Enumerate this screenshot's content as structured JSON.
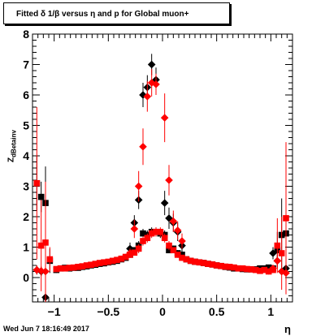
{
  "title_box": {
    "text": "Fitted δ 1/β versus η and p for Global muon+"
  },
  "timestamp": "Wed Jun  7 18:16:49 2017",
  "colors": {
    "series_black": "#000000",
    "series_red": "#ff0000",
    "axis": "#000000"
  },
  "chart_data": {
    "type": "scatter",
    "title": "Fitted δ 1/β versus η and p for Global muon+",
    "xlabel": "η",
    "ylabel": "Z_dBetainv",
    "xlim": [
      -1.2,
      1.2
    ],
    "ylim": [
      -0.8,
      8
    ],
    "x_ticks": [
      "−1",
      "−0.5",
      "0",
      "0.5",
      "1"
    ],
    "x_tick_values": [
      -1,
      -0.5,
      0,
      0.5,
      1
    ],
    "y_ticks": [
      "0",
      "1",
      "2",
      "3",
      "4",
      "5",
      "6",
      "7",
      "8"
    ],
    "y_tick_values": [
      0,
      1,
      2,
      3,
      4,
      5,
      6,
      7,
      8
    ],
    "grid": false,
    "legend": "none",
    "series": [
      {
        "marker": "square",
        "color": "black",
        "points": [
          [
            -1.16,
            3.1,
            0.9
          ],
          [
            -1.12,
            2.65,
            0.5
          ],
          [
            -1.08,
            2.45,
            1.2
          ],
          [
            -1.04,
            0.55,
            0.4
          ],
          [
            -0.98,
            0.25,
            0.1
          ],
          [
            -0.94,
            0.3,
            0.08
          ],
          [
            -0.9,
            0.32,
            0.08
          ],
          [
            -0.86,
            0.3,
            0.08
          ],
          [
            -0.82,
            0.32,
            0.08
          ],
          [
            -0.78,
            0.32,
            0.08
          ],
          [
            -0.74,
            0.35,
            0.08
          ],
          [
            -0.7,
            0.37,
            0.08
          ],
          [
            -0.66,
            0.4,
            0.08
          ],
          [
            -0.62,
            0.42,
            0.08
          ],
          [
            -0.58,
            0.45,
            0.08
          ],
          [
            -0.54,
            0.47,
            0.08
          ],
          [
            -0.5,
            0.5,
            0.08
          ],
          [
            -0.46,
            0.52,
            0.08
          ],
          [
            -0.42,
            0.55,
            0.08
          ],
          [
            -0.38,
            0.6,
            0.08
          ],
          [
            -0.34,
            0.65,
            0.1
          ],
          [
            -0.3,
            0.75,
            0.1
          ],
          [
            -0.26,
            0.9,
            0.1
          ],
          [
            -0.22,
            1.05,
            0.15
          ],
          [
            -0.18,
            1.45,
            0.15
          ],
          [
            -0.14,
            1.4,
            0.15
          ],
          [
            -0.1,
            1.5,
            0.15
          ],
          [
            -0.06,
            1.5,
            0.15
          ],
          [
            -0.02,
            1.45,
            0.15
          ],
          [
            0.02,
            1.4,
            0.15
          ],
          [
            0.06,
            0.9,
            0.1
          ],
          [
            0.1,
            0.95,
            0.1
          ],
          [
            0.14,
            0.8,
            0.1
          ],
          [
            0.18,
            0.75,
            0.1
          ],
          [
            0.22,
            0.6,
            0.08
          ],
          [
            0.26,
            0.55,
            0.08
          ],
          [
            0.3,
            0.52,
            0.08
          ],
          [
            0.34,
            0.5,
            0.08
          ],
          [
            0.38,
            0.48,
            0.08
          ],
          [
            0.42,
            0.45,
            0.08
          ],
          [
            0.46,
            0.43,
            0.08
          ],
          [
            0.5,
            0.4,
            0.08
          ],
          [
            0.54,
            0.38,
            0.08
          ],
          [
            0.58,
            0.35,
            0.08
          ],
          [
            0.62,
            0.33,
            0.08
          ],
          [
            0.66,
            0.3,
            0.08
          ],
          [
            0.7,
            0.3,
            0.08
          ],
          [
            0.74,
            0.28,
            0.08
          ],
          [
            0.78,
            0.27,
            0.08
          ],
          [
            0.82,
            0.27,
            0.08
          ],
          [
            0.86,
            0.27,
            0.08
          ],
          [
            0.9,
            0.3,
            0.08
          ],
          [
            0.94,
            0.3,
            0.08
          ],
          [
            0.98,
            0.33,
            0.08
          ],
          [
            1.02,
            0.3,
            0.1
          ],
          [
            1.06,
            0.9,
            0.6
          ],
          [
            1.1,
            1.4,
            1.2
          ],
          [
            1.14,
            1.45,
            1.6
          ]
        ]
      },
      {
        "marker": "diamond",
        "color": "black",
        "points": [
          [
            -1.16,
            0.25,
            0.15
          ],
          [
            -1.12,
            0.2,
            0.15
          ],
          [
            -1.08,
            -0.65,
            0.3
          ],
          [
            -0.3,
            0.95,
            0.2
          ],
          [
            -0.26,
            1.8,
            0.25
          ],
          [
            -0.22,
            2.55,
            0.3
          ],
          [
            -0.18,
            6.0,
            0.4
          ],
          [
            -0.14,
            6.25,
            0.4
          ],
          [
            -0.1,
            7.0,
            0.35
          ],
          [
            -0.06,
            6.5,
            0.4
          ],
          [
            0.02,
            2.45,
            0.4
          ],
          [
            0.06,
            1.95,
            0.35
          ],
          [
            0.1,
            1.8,
            0.3
          ],
          [
            0.14,
            1.5,
            0.3
          ],
          [
            0.18,
            1.05,
            0.25
          ],
          [
            1.02,
            0.8,
            0.2
          ],
          [
            1.06,
            0.55,
            0.2
          ],
          [
            1.1,
            0.2,
            0.1
          ],
          [
            1.14,
            0.3,
            0.1
          ]
        ]
      },
      {
        "marker": "square",
        "color": "red",
        "points": [
          [
            -1.16,
            3.1,
            2.5
          ],
          [
            -1.12,
            1.05,
            1.5
          ],
          [
            -1.08,
            1.15,
            2.0
          ],
          [
            -1.04,
            0.6,
            0.4
          ],
          [
            -0.98,
            0.28,
            0.08
          ],
          [
            -0.94,
            0.3,
            0.08
          ],
          [
            -0.9,
            0.3,
            0.08
          ],
          [
            -0.86,
            0.32,
            0.08
          ],
          [
            -0.82,
            0.33,
            0.08
          ],
          [
            -0.78,
            0.35,
            0.08
          ],
          [
            -0.74,
            0.37,
            0.08
          ],
          [
            -0.7,
            0.4,
            0.08
          ],
          [
            -0.66,
            0.42,
            0.08
          ],
          [
            -0.62,
            0.45,
            0.08
          ],
          [
            -0.58,
            0.48,
            0.08
          ],
          [
            -0.54,
            0.5,
            0.08
          ],
          [
            -0.5,
            0.52,
            0.08
          ],
          [
            -0.46,
            0.55,
            0.08
          ],
          [
            -0.42,
            0.58,
            0.08
          ],
          [
            -0.38,
            0.62,
            0.08
          ],
          [
            -0.34,
            0.68,
            0.1
          ],
          [
            -0.3,
            0.75,
            0.1
          ],
          [
            -0.26,
            0.82,
            0.1
          ],
          [
            -0.22,
            0.95,
            0.15
          ],
          [
            -0.18,
            1.2,
            0.15
          ],
          [
            -0.14,
            1.3,
            0.15
          ],
          [
            -0.1,
            1.45,
            0.15
          ],
          [
            -0.06,
            1.5,
            0.15
          ],
          [
            -0.02,
            1.5,
            0.15
          ],
          [
            0.02,
            1.3,
            0.15
          ],
          [
            0.06,
            1.05,
            0.15
          ],
          [
            0.1,
            0.9,
            0.1
          ],
          [
            0.14,
            0.75,
            0.1
          ],
          [
            0.18,
            0.65,
            0.1
          ],
          [
            0.22,
            0.6,
            0.08
          ],
          [
            0.26,
            0.55,
            0.08
          ],
          [
            0.3,
            0.52,
            0.08
          ],
          [
            0.34,
            0.5,
            0.08
          ],
          [
            0.38,
            0.48,
            0.08
          ],
          [
            0.42,
            0.45,
            0.08
          ],
          [
            0.46,
            0.43,
            0.08
          ],
          [
            0.5,
            0.4,
            0.08
          ],
          [
            0.54,
            0.38,
            0.08
          ],
          [
            0.58,
            0.36,
            0.08
          ],
          [
            0.62,
            0.35,
            0.08
          ],
          [
            0.66,
            0.33,
            0.08
          ],
          [
            0.7,
            0.3,
            0.08
          ],
          [
            0.74,
            0.3,
            0.08
          ],
          [
            0.78,
            0.28,
            0.08
          ],
          [
            0.82,
            0.27,
            0.08
          ],
          [
            0.86,
            0.25,
            0.08
          ],
          [
            0.9,
            0.22,
            0.08
          ],
          [
            0.94,
            0.25,
            0.08
          ],
          [
            0.98,
            0.2,
            0.1
          ],
          [
            1.02,
            0.25,
            0.1
          ],
          [
            1.06,
            1.05,
            0.9
          ],
          [
            1.1,
            0.8,
            1.2
          ],
          [
            1.14,
            1.95,
            2.5
          ]
        ]
      },
      {
        "marker": "diamond",
        "color": "red",
        "points": [
          [
            -1.16,
            0.25,
            0.15
          ],
          [
            -1.12,
            0.22,
            0.15
          ],
          [
            -1.08,
            0.2,
            0.15
          ],
          [
            -0.3,
            0.8,
            0.15
          ],
          [
            -0.26,
            1.6,
            0.3
          ],
          [
            -0.22,
            3.0,
            0.5
          ],
          [
            -0.18,
            4.3,
            0.6
          ],
          [
            -0.14,
            5.95,
            0.5
          ],
          [
            -0.1,
            6.4,
            0.45
          ],
          [
            -0.06,
            6.35,
            0.35
          ],
          [
            0.02,
            5.25,
            0.8
          ],
          [
            0.06,
            3.2,
            0.5
          ],
          [
            0.1,
            1.85,
            0.35
          ],
          [
            0.14,
            1.55,
            0.3
          ],
          [
            0.18,
            1.2,
            0.25
          ],
          [
            1.02,
            0.3,
            0.1
          ],
          [
            1.06,
            0.55,
            0.15
          ],
          [
            1.1,
            0.2,
            0.1
          ],
          [
            1.14,
            0.15,
            0.1
          ]
        ]
      }
    ]
  }
}
